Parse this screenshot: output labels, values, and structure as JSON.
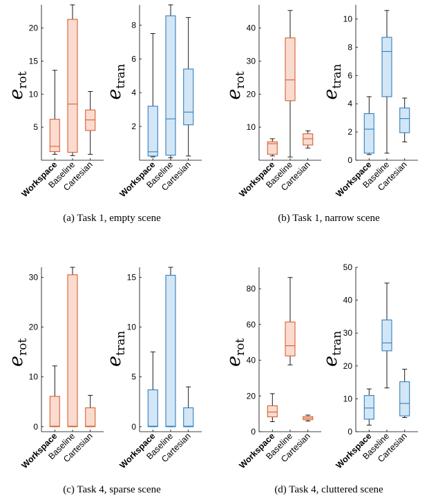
{
  "colors": {
    "rot_stroke": "#D95F30",
    "rot_fill": "#FADBCF",
    "tran_stroke": "#2F7FC0",
    "tran_fill": "#D3E6F5"
  },
  "captions": [
    "(a) Task 1, empty scene",
    "(b) Task 1, narrow scene",
    "(c) Task 4, sparse scene",
    "(d) Task 4, cluttered scene"
  ],
  "chart_data": [
    {
      "type": "box",
      "panel": "a",
      "metric": "rot",
      "ylabel": "e",
      "ylabel_sub": "rot",
      "categories": [
        "Workspace",
        "Baseline",
        "Cartesian"
      ],
      "yticks": [
        5,
        10,
        15,
        20
      ],
      "ylim": [
        0,
        23.5
      ],
      "boxes": [
        {
          "min": 0.9,
          "q1": 1.3,
          "median": 2.1,
          "q3": 6.2,
          "max": 13.6
        },
        {
          "min": 0.7,
          "q1": 1.2,
          "median": 8.5,
          "q3": 21.3,
          "max": 23.5
        },
        {
          "min": 0.9,
          "q1": 4.5,
          "median": 6.1,
          "q3": 7.6,
          "max": 10.4
        }
      ]
    },
    {
      "type": "box",
      "panel": "a",
      "metric": "tran",
      "ylabel": "e",
      "ylabel_sub": "tran",
      "categories": [
        "Workspace",
        "Baseline",
        "Cartesian"
      ],
      "yticks": [
        2,
        4,
        6,
        8
      ],
      "ylim": [
        0,
        9.2
      ],
      "boxes": [
        {
          "min": 0.2,
          "q1": 0.25,
          "median": 0.5,
          "q3": 3.2,
          "max": 7.5
        },
        {
          "min": 0.15,
          "q1": 0.3,
          "median": 2.45,
          "q3": 8.55,
          "max": 9.2
        },
        {
          "min": 0.25,
          "q1": 2.1,
          "median": 2.85,
          "q3": 5.4,
          "max": 8.45
        }
      ]
    },
    {
      "type": "box",
      "panel": "b",
      "metric": "rot",
      "ylabel": "e",
      "ylabel_sub": "rot",
      "categories": [
        "Workspace",
        "Baseline",
        "Cartesian"
      ],
      "yticks": [
        10,
        20,
        30,
        40
      ],
      "ylim": [
        0,
        47
      ],
      "boxes": [
        {
          "min": 1.3,
          "q1": 1.8,
          "median": 5.0,
          "q3": 5.6,
          "max": 6.5
        },
        {
          "min": 1.0,
          "q1": 18.0,
          "median": 24.3,
          "q3": 37.0,
          "max": 45.3
        },
        {
          "min": 3.7,
          "q1": 4.6,
          "median": 6.5,
          "q3": 8.0,
          "max": 8.9
        }
      ]
    },
    {
      "type": "box",
      "panel": "b",
      "metric": "tran",
      "ylabel": "e",
      "ylabel_sub": "tran",
      "categories": [
        "Workspace",
        "Baseline",
        "Cartesian"
      ],
      "yticks": [
        0,
        2,
        4,
        6,
        8,
        10
      ],
      "ylim": [
        0,
        11
      ],
      "boxes": [
        {
          "min": 0.4,
          "q1": 0.5,
          "median": 2.2,
          "q3": 3.3,
          "max": 4.5
        },
        {
          "min": 0.5,
          "q1": 4.5,
          "median": 7.7,
          "q3": 8.7,
          "max": 10.6
        },
        {
          "min": 1.3,
          "q1": 1.95,
          "median": 2.95,
          "q3": 3.7,
          "max": 4.4
        }
      ]
    },
    {
      "type": "box",
      "panel": "c",
      "metric": "rot",
      "ylabel": "e",
      "ylabel_sub": "rot",
      "categories": [
        "Workspace",
        "Baseline",
        "Cartesian"
      ],
      "yticks": [
        0,
        10,
        20,
        30
      ],
      "ylim": [
        -1,
        32
      ],
      "boxes": [
        {
          "min": 0,
          "q1": 0,
          "median": 0.1,
          "q3": 6.1,
          "max": 12.2
        },
        {
          "min": 0,
          "q1": 0,
          "median": 0.1,
          "q3": 30.5,
          "max": 32
        },
        {
          "min": 0,
          "q1": 0,
          "median": 0.1,
          "q3": 3.8,
          "max": 6.3
        }
      ]
    },
    {
      "type": "box",
      "panel": "c",
      "metric": "tran",
      "ylabel": "e",
      "ylabel_sub": "tran",
      "categories": [
        "Workspace",
        "Baseline",
        "Cartesian"
      ],
      "yticks": [
        0,
        5,
        10,
        15
      ],
      "ylim": [
        -0.5,
        16
      ],
      "boxes": [
        {
          "min": 0,
          "q1": 0,
          "median": 0.05,
          "q3": 3.7,
          "max": 7.5
        },
        {
          "min": 0,
          "q1": 0,
          "median": 0.05,
          "q3": 15.2,
          "max": 16
        },
        {
          "min": 0,
          "q1": 0,
          "median": 0.05,
          "q3": 1.9,
          "max": 4.0
        }
      ]
    },
    {
      "type": "box",
      "panel": "d",
      "metric": "rot",
      "ylabel": "e",
      "ylabel_sub": "rot",
      "categories": [
        "Workspace",
        "Baseline",
        "Cartesian"
      ],
      "yticks": [
        0,
        20,
        40,
        60,
        80
      ],
      "ylim": [
        0,
        92
      ],
      "boxes": [
        {
          "min": 5.6,
          "q1": 8.3,
          "median": 11.0,
          "q3": 14.5,
          "max": 21.3
        },
        {
          "min": 37.4,
          "q1": 42.4,
          "median": 48.1,
          "q3": 61.4,
          "max": 86.3
        },
        {
          "min": 6.0,
          "q1": 6.7,
          "median": 7.6,
          "q3": 8.5,
          "max": 9.3
        }
      ]
    },
    {
      "type": "box",
      "panel": "d",
      "metric": "tran",
      "ylabel": "e",
      "ylabel_sub": "tran",
      "categories": [
        "Workspace",
        "Baseline",
        "Cartesian"
      ],
      "yticks": [
        0,
        10,
        20,
        30,
        40,
        50
      ],
      "ylim": [
        0,
        50
      ],
      "boxes": [
        {
          "min": 2.0,
          "q1": 3.8,
          "median": 7.2,
          "q3": 11.0,
          "max": 13.0
        },
        {
          "min": 13.3,
          "q1": 24.6,
          "median": 27.0,
          "q3": 34.0,
          "max": 45.2
        },
        {
          "min": 4.3,
          "q1": 4.8,
          "median": 8.6,
          "q3": 15.2,
          "max": 19.0
        }
      ]
    }
  ]
}
